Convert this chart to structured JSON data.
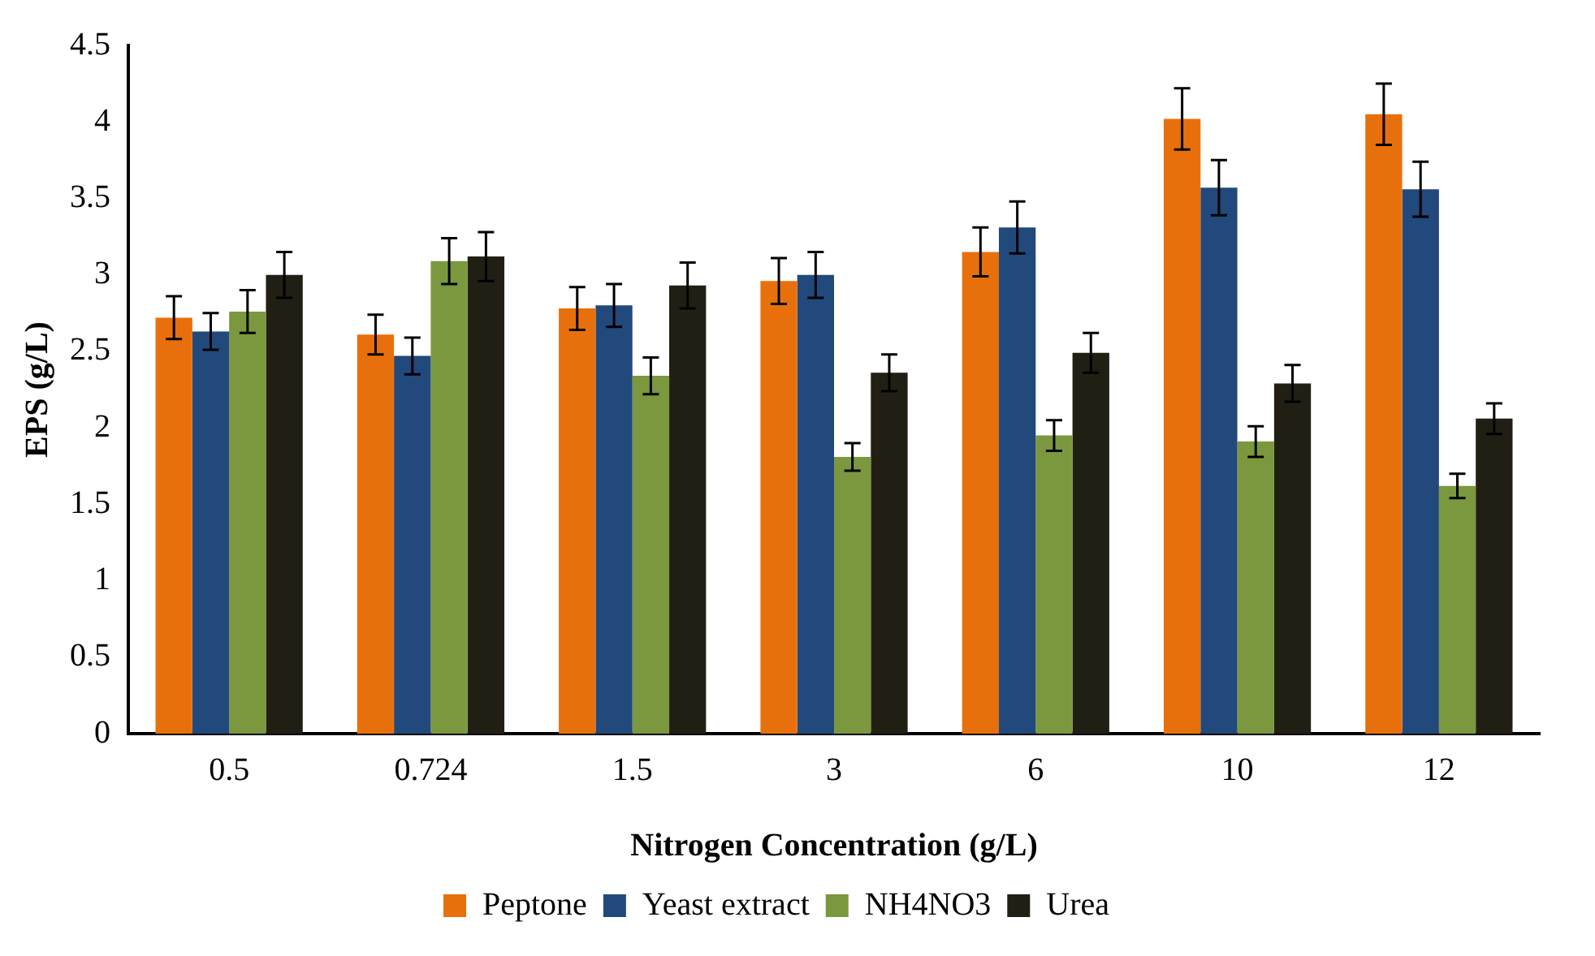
{
  "chart_data": {
    "type": "bar",
    "xlabel": "Nitrogen Concentration (g/L)",
    "ylabel": "EPS (g/L)",
    "categories": [
      "0.5",
      "0.724",
      "1.5",
      "3",
      "6",
      "10",
      "12"
    ],
    "series": [
      {
        "name": "Peptone",
        "color": "#e8700c",
        "values": [
          2.72,
          2.61,
          2.78,
          2.96,
          3.15,
          4.02,
          4.05
        ],
        "errors": [
          0.14,
          0.13,
          0.14,
          0.15,
          0.16,
          0.2,
          0.2
        ]
      },
      {
        "name": "Yeast extract",
        "color": "#22497c",
        "values": [
          2.63,
          2.47,
          2.8,
          3.0,
          3.31,
          3.57,
          3.56
        ],
        "errors": [
          0.12,
          0.12,
          0.14,
          0.15,
          0.17,
          0.18,
          0.18
        ]
      },
      {
        "name": "NH4NO3",
        "color": "#7b983f",
        "values": [
          2.76,
          3.09,
          2.34,
          1.81,
          1.95,
          1.91,
          1.62
        ],
        "errors": [
          0.14,
          0.15,
          0.12,
          0.09,
          0.1,
          0.1,
          0.08
        ]
      },
      {
        "name": "Urea",
        "color": "#211f14",
        "values": [
          3.0,
          3.12,
          2.93,
          2.36,
          2.49,
          2.29,
          2.06
        ],
        "errors": [
          0.15,
          0.16,
          0.15,
          0.12,
          0.13,
          0.12,
          0.1
        ]
      }
    ],
    "ylim": [
      0,
      4.5
    ],
    "yticks": [
      0,
      0.5,
      1,
      1.5,
      2,
      2.5,
      3,
      3.5,
      4,
      4.5
    ],
    "grid": false,
    "legend": "bottom"
  }
}
